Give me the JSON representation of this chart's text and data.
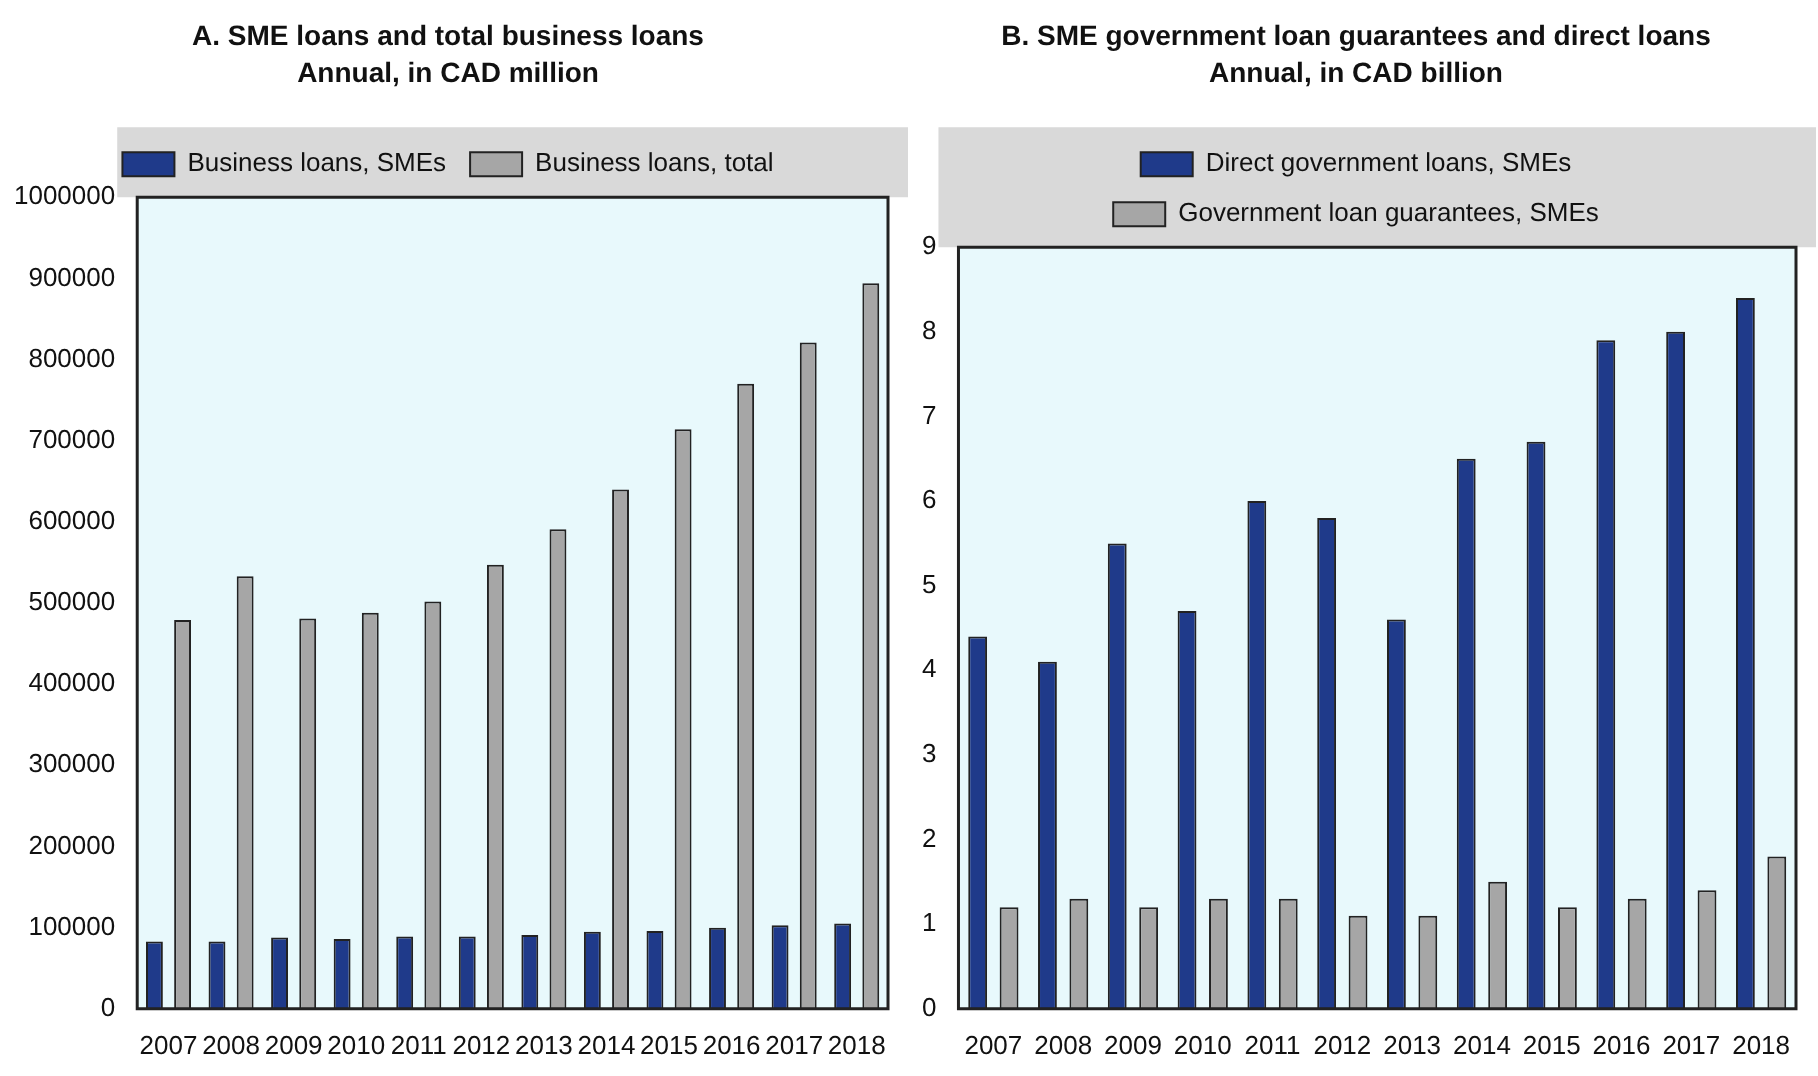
{
  "chart_data": [
    {
      "type": "bar",
      "title": "A. SME loans and total business loans",
      "subtitle": "Annual, in CAD million",
      "categories": [
        "2007",
        "2008",
        "2009",
        "2010",
        "2011",
        "2012",
        "2013",
        "2014",
        "2015",
        "2016",
        "2017",
        "2018"
      ],
      "series": [
        {
          "name": "Business loans, SMEs",
          "color": "#1f3a8a",
          "values": [
            83000,
            83000,
            88000,
            86000,
            89000,
            89000,
            91000,
            95000,
            96000,
            100000,
            103000,
            105000
          ]
        },
        {
          "name": "Business loans, total",
          "color": "#a6a6a6",
          "values": [
            479000,
            533000,
            481000,
            488000,
            502000,
            547000,
            591000,
            640000,
            714000,
            770000,
            821000,
            894000
          ]
        }
      ],
      "ylim": [
        0,
        1000000
      ],
      "yticks": [
        0,
        100000,
        200000,
        300000,
        400000,
        500000,
        600000,
        700000,
        800000,
        900000,
        1000000
      ],
      "legend": "top",
      "grid": false
    },
    {
      "type": "bar",
      "title": "B. SME government loan guarantees and direct loans",
      "subtitle": "Annual, in CAD billion",
      "categories": [
        "2007",
        "2008",
        "2009",
        "2010",
        "2011",
        "2012",
        "2013",
        "2014",
        "2015",
        "2016",
        "2017",
        "2018"
      ],
      "series": [
        {
          "name": "Direct government loans, SMEs",
          "color": "#1f3a8a",
          "values": [
            4.4,
            4.1,
            5.5,
            4.7,
            6.0,
            5.8,
            4.6,
            6.5,
            6.7,
            7.9,
            8.0,
            8.4
          ]
        },
        {
          "name": "Government loan guarantees, SMEs",
          "color": "#a6a6a6",
          "values": [
            1.2,
            1.3,
            1.2,
            1.3,
            1.3,
            1.1,
            1.1,
            1.5,
            1.2,
            1.3,
            1.4,
            1.8
          ]
        }
      ],
      "ylim": [
        0,
        9
      ],
      "yticks": [
        0,
        1,
        2,
        3,
        4,
        5,
        6,
        7,
        8,
        9
      ],
      "legend": "top",
      "grid": false
    }
  ]
}
